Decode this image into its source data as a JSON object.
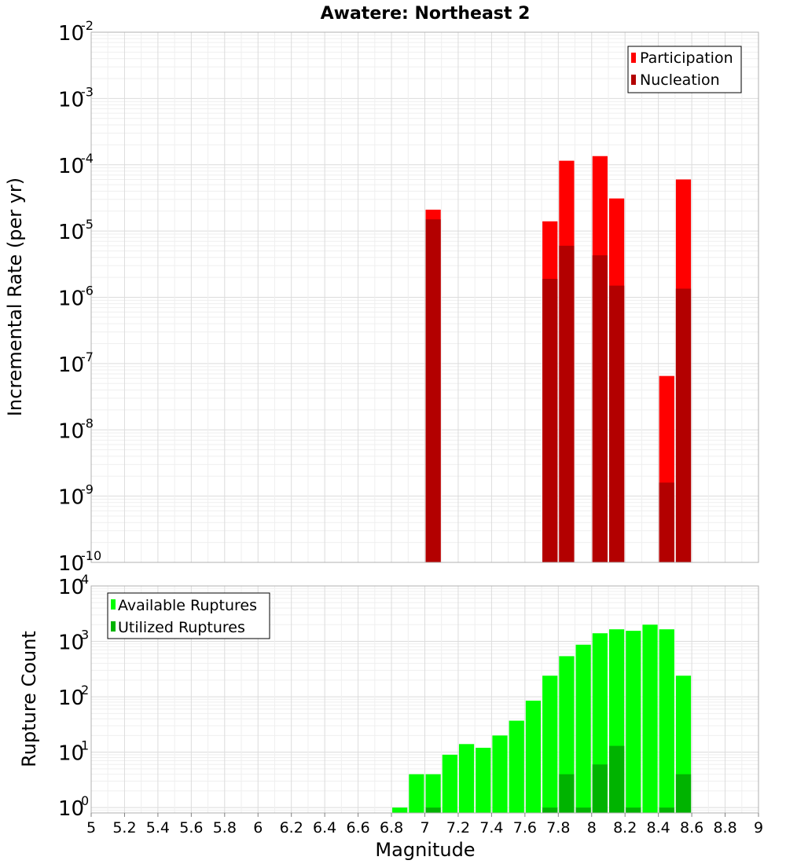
{
  "title": "Awatere: Northeast 2",
  "xlabel": "Magnitude",
  "x_ticks": [
    "5",
    "5.2",
    "5.4",
    "5.6",
    "5.8",
    "6",
    "6.2",
    "6.4",
    "6.6",
    "6.8",
    "7",
    "7.2",
    "7.4",
    "7.6",
    "7.8",
    "8",
    "8.2",
    "8.4",
    "8.6",
    "8.8",
    "9"
  ],
  "colors": {
    "participation": "#ff0000",
    "nucleation": "#b30000",
    "available": "#00ff00",
    "utilized": "#00b300"
  },
  "chart_data": [
    {
      "type": "bar",
      "ylabel": "Incremental Rate (per yr)",
      "yscale": "log",
      "xlim": [
        5,
        9
      ],
      "ylim": [
        1e-10,
        0.01
      ],
      "y_tick_exponents": [
        "-2",
        "-3",
        "-4",
        "-5",
        "-6",
        "-7",
        "-8",
        "-9",
        "-10"
      ],
      "legend_position": "top-right",
      "grid": true,
      "series": [
        {
          "name": "Participation",
          "x": [
            7.05,
            7.75,
            7.85,
            8.05,
            8.15,
            8.45,
            8.55
          ],
          "values": [
            2.1e-05,
            1.4e-05,
            0.000115,
            0.000135,
            3.1e-05,
            6.5e-08,
            6e-05
          ]
        },
        {
          "name": "Nucleation",
          "x": [
            7.05,
            7.75,
            7.85,
            8.05,
            8.15,
            8.45,
            8.55
          ],
          "values": [
            1.5e-05,
            1.9e-06,
            6e-06,
            4.3e-06,
            1.5e-06,
            1.6e-09,
            1.35e-06
          ]
        }
      ]
    },
    {
      "type": "bar",
      "ylabel": "Rupture Count",
      "yscale": "log",
      "xlim": [
        5,
        9
      ],
      "ylim": [
        0.8,
        10000
      ],
      "y_tick_exponents": [
        "4",
        "3",
        "2",
        "1",
        "0"
      ],
      "legend_position": "top-left",
      "grid": true,
      "series": [
        {
          "name": "Available Ruptures",
          "x": [
            6.85,
            6.95,
            7.05,
            7.15,
            7.25,
            7.35,
            7.45,
            7.55,
            7.65,
            7.75,
            7.85,
            7.95,
            8.05,
            8.15,
            8.25,
            8.35,
            8.45,
            8.55
          ],
          "values": [
            1,
            4,
            4,
            9,
            14,
            12,
            20,
            37,
            85,
            240,
            540,
            870,
            1400,
            1650,
            1550,
            2000,
            1650,
            240
          ]
        },
        {
          "name": "Utilized Ruptures",
          "x": [
            7.05,
            7.75,
            7.85,
            7.95,
            8.05,
            8.15,
            8.25,
            8.45,
            8.55
          ],
          "values": [
            1,
            1,
            4,
            1,
            6,
            13,
            1,
            1,
            4
          ]
        }
      ]
    }
  ]
}
